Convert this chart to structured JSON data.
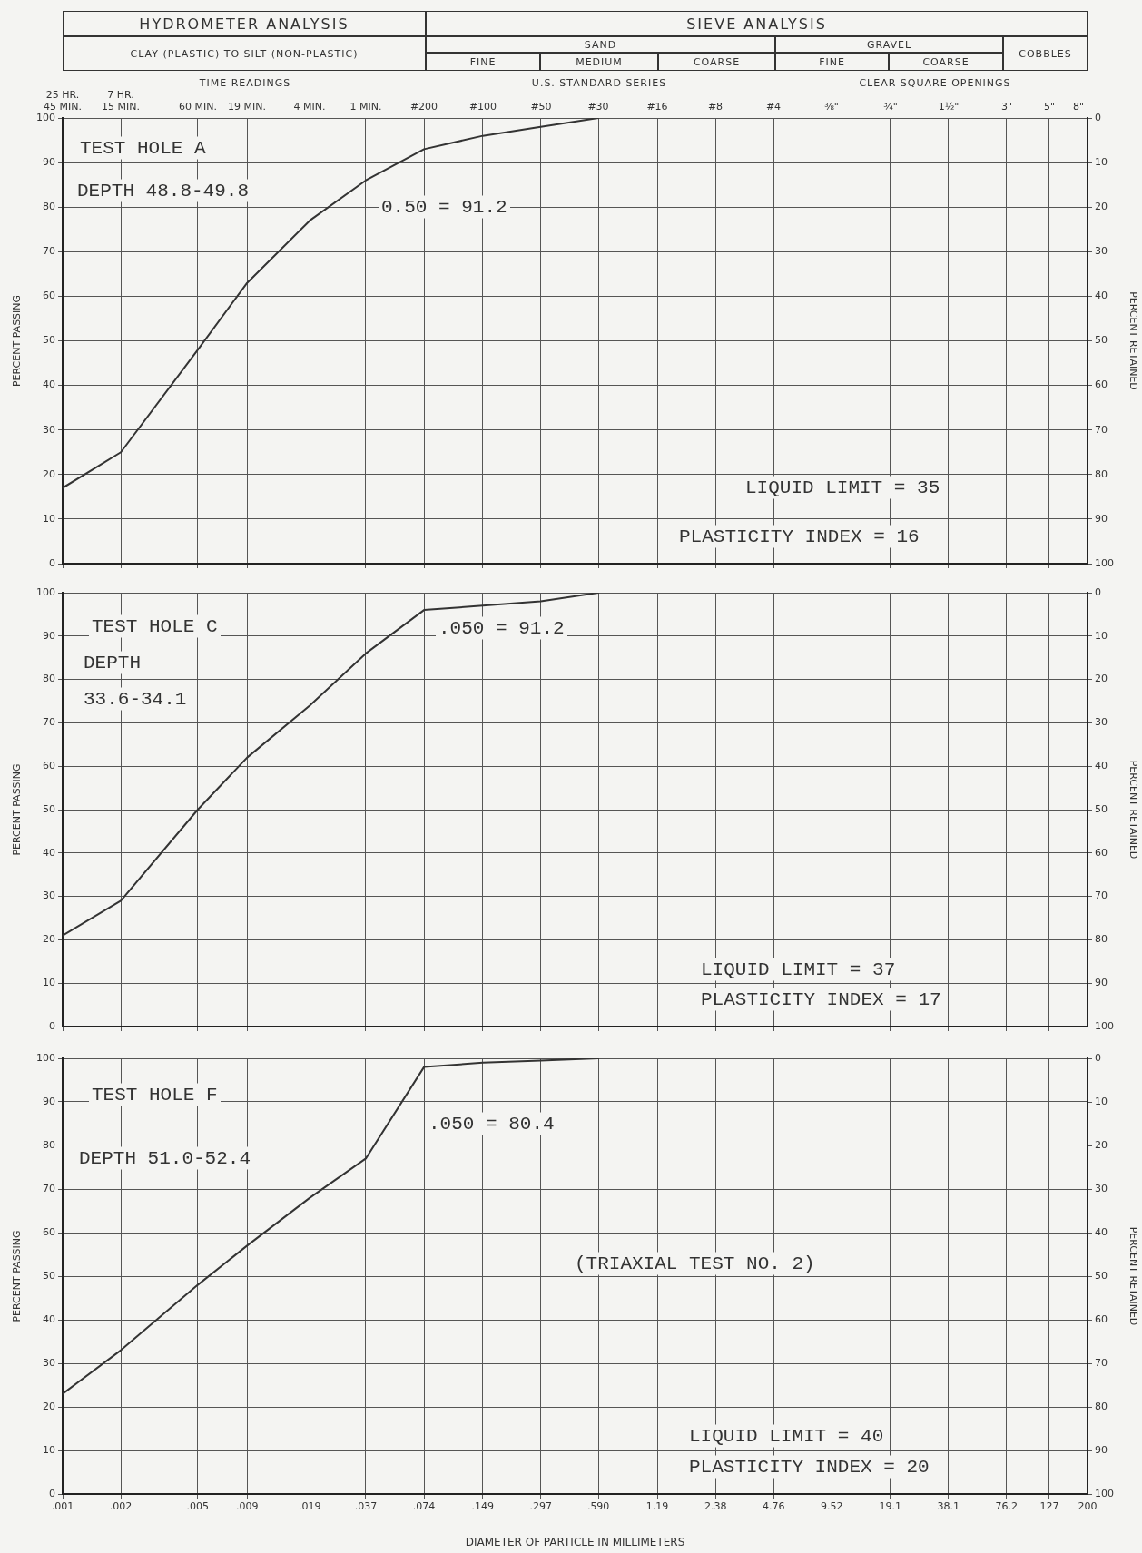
{
  "chart_data": [
    {
      "type": "line",
      "ylabel": "PERCENT PASSING",
      "y2label": "PERCENT RETAINED",
      "annotations": [
        "HYDROMETER ANALYSIS",
        "SIEVE ANALYSIS",
        "CLAY (PLASTIC) TO SILT (NON-PLASTIC)",
        "SAND",
        "FINE",
        "MEDIUM",
        "COARSE",
        "GRAVEL",
        "FINE",
        "COARSE",
        "COBBLES",
        "TIME READINGS",
        "U.S. STANDARD SERIES",
        "CLEAR SQUARE OPENINGS",
        "25 HR. 45 MIN.",
        "7 HR. 15 MIN.",
        "60 MIN.",
        "19 MIN.",
        "4 MIN.",
        "1 MIN.",
        "#200",
        "#100",
        "#50",
        "#30",
        "#16",
        "#8",
        "#4",
        "⅜\"",
        "¾\"",
        "1½\"",
        "3\"",
        "5\"",
        "8\"",
        "TEST HOLE A",
        "DEPTH 48.8-49.8",
        "0.50 = 91.2",
        "LIQUID LIMIT = 35",
        "PLASTICITY INDEX = 16"
      ],
      "x": [
        0.001,
        0.002,
        0.005,
        0.009,
        0.019,
        0.037,
        0.074,
        0.149,
        0.297,
        0.59
      ],
      "series": [
        {
          "color": "#333333",
          "values": [
            17,
            25,
            48,
            63,
            77,
            86,
            93,
            96,
            98,
            100
          ]
        }
      ],
      "log": "x",
      "xlim": [
        0.001,
        200
      ],
      "xticks": [
        {
          "value": 0.001,
          "label": null
        },
        {
          "value": 0.002,
          "label": null
        },
        {
          "value": 0.005,
          "label": null
        },
        {
          "value": 0.009,
          "label": null
        },
        {
          "value": 0.019,
          "label": null
        },
        {
          "value": 0.037,
          "label": null
        },
        {
          "value": 0.074,
          "label": null
        },
        {
          "value": 0.149,
          "label": null
        },
        {
          "value": 0.297,
          "label": null
        },
        {
          "value": 0.59,
          "label": null
        },
        {
          "value": 1.19,
          "label": null
        },
        {
          "value": 2.38,
          "label": null
        },
        {
          "value": 4.76,
          "label": null
        },
        {
          "value": 9.52,
          "label": null
        },
        {
          "value": 19.1,
          "label": null
        },
        {
          "value": 38.1,
          "label": null
        },
        {
          "value": 76.2,
          "label": null
        },
        {
          "value": 127,
          "label": null
        },
        {
          "value": 200,
          "label": null
        }
      ],
      "ylim": [
        0,
        100
      ],
      "yticks": [
        0,
        10,
        20,
        30,
        40,
        50,
        60,
        70,
        80,
        90,
        100
      ],
      "y2lim": [
        100,
        0
      ],
      "y2ticks": [
        0,
        10,
        20,
        30,
        40,
        50,
        60,
        70,
        80,
        90,
        100
      ],
      "tick_labels": "y",
      "grid": true,
      "legend": false,
      "marker": "none",
      "line_style": "solid"
    },
    {
      "type": "line",
      "ylabel": "PERCENT PASSING",
      "y2label": "PERCENT RETAINED",
      "annotations": [
        "TEST HOLE C",
        "DEPTH",
        "33.6-34.1",
        ".050 = 91.2",
        "LIQUID LIMIT = 37",
        "PLASTICITY INDEX = 17"
      ],
      "x": [
        0.001,
        0.002,
        0.005,
        0.009,
        0.019,
        0.037,
        0.074,
        0.149,
        0.297,
        0.59
      ],
      "series": [
        {
          "color": "#333333",
          "values": [
            21,
            29,
            50,
            62,
            74,
            86,
            96,
            97,
            98,
            100
          ]
        }
      ],
      "log": "x",
      "xlim": [
        0.001,
        200
      ],
      "xticks": [
        {
          "value": 0.001,
          "label": null
        },
        {
          "value": 0.002,
          "label": null
        },
        {
          "value": 0.005,
          "label": null
        },
        {
          "value": 0.009,
          "label": null
        },
        {
          "value": 0.019,
          "label": null
        },
        {
          "value": 0.037,
          "label": null
        },
        {
          "value": 0.074,
          "label": null
        },
        {
          "value": 0.149,
          "label": null
        },
        {
          "value": 0.297,
          "label": null
        },
        {
          "value": 0.59,
          "label": null
        },
        {
          "value": 1.19,
          "label": null
        },
        {
          "value": 2.38,
          "label": null
        },
        {
          "value": 4.76,
          "label": null
        },
        {
          "value": 9.52,
          "label": null
        },
        {
          "value": 19.1,
          "label": null
        },
        {
          "value": 38.1,
          "label": null
        },
        {
          "value": 76.2,
          "label": null
        },
        {
          "value": 127,
          "label": null
        },
        {
          "value": 200,
          "label": null
        }
      ],
      "ylim": [
        0,
        100
      ],
      "yticks": [
        0,
        10,
        20,
        30,
        40,
        50,
        60,
        70,
        80,
        90,
        100
      ],
      "y2lim": [
        100,
        0
      ],
      "y2ticks": [
        0,
        10,
        20,
        30,
        40,
        50,
        60,
        70,
        80,
        90,
        100
      ],
      "tick_labels": "y",
      "grid": true,
      "legend": false,
      "marker": "none",
      "line_style": "solid"
    },
    {
      "type": "line",
      "xlabel": "DIAMETER OF PARTICLE IN MILLIMETERS",
      "ylabel": "PERCENT PASSING",
      "y2label": "PERCENT RETAINED",
      "annotations": [
        "TEST HOLE F",
        "DEPTH 51.0-52.4",
        ".050 = 80.4",
        "(TRIAXIAL TEST NO. 2)",
        "LIQUID LIMIT = 40",
        "PLASTICITY INDEX = 20"
      ],
      "x": [
        0.001,
        0.002,
        0.005,
        0.009,
        0.019,
        0.037,
        0.074,
        0.149,
        0.297,
        0.59
      ],
      "series": [
        {
          "color": "#333333",
          "values": [
            23,
            33,
            48,
            57,
            68,
            77,
            98,
            99,
            99.5,
            100
          ]
        }
      ],
      "log": "x",
      "xlim": [
        0.001,
        200
      ],
      "xticks": [
        {
          "value": 0.001,
          "label": ".001"
        },
        {
          "value": 0.002,
          "label": ".002"
        },
        {
          "value": 0.005,
          "label": ".005"
        },
        {
          "value": 0.009,
          "label": ".009"
        },
        {
          "value": 0.019,
          "label": ".019"
        },
        {
          "value": 0.037,
          "label": ".037"
        },
        {
          "value": 0.074,
          "label": ".074"
        },
        {
          "value": 0.149,
          "label": ".149"
        },
        {
          "value": 0.297,
          "label": ".297"
        },
        {
          "value": 0.59,
          "label": ".590"
        },
        1.19,
        2.38,
        4.76,
        9.52,
        19.1,
        38.1,
        76.2,
        127,
        200
      ],
      "ylim": [
        0,
        100
      ],
      "yticks": [
        0,
        10,
        20,
        30,
        40,
        50,
        60,
        70,
        80,
        90,
        100
      ],
      "y2lim": [
        100,
        0
      ],
      "y2ticks": [
        0,
        10,
        20,
        30,
        40,
        50,
        60,
        70,
        80,
        90,
        100
      ],
      "grid": true,
      "legend": false,
      "marker": "none",
      "line_style": "solid"
    }
  ]
}
